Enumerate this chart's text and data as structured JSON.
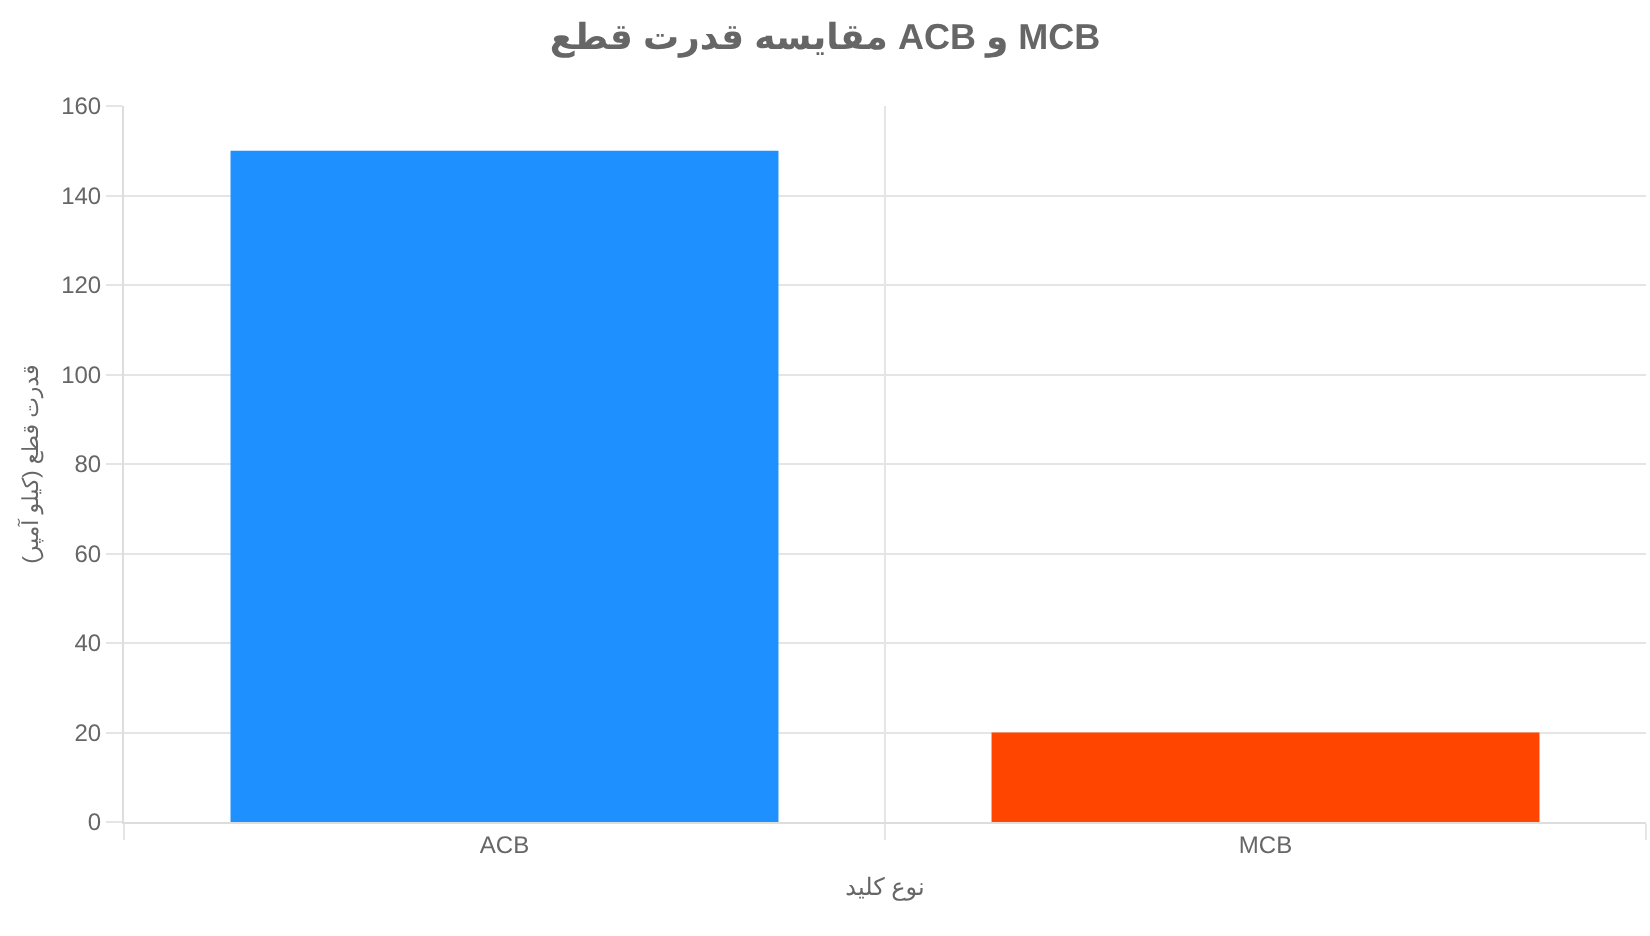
{
  "chart_data": {
    "type": "bar",
    "title": "مقایسه قدرت قطع ACB و MCB",
    "xlabel": "نوع کلید",
    "ylabel": "قدرت قطع (کیلو آمپر)",
    "categories": [
      "ACB",
      "MCB"
    ],
    "values": [
      150,
      20
    ],
    "colors": [
      "#1e90ff",
      "#ff4500"
    ],
    "ylim": [
      0,
      160
    ],
    "yticks": [
      0,
      20,
      40,
      60,
      80,
      100,
      120,
      140,
      160
    ],
    "grid": true,
    "legend": false
  }
}
